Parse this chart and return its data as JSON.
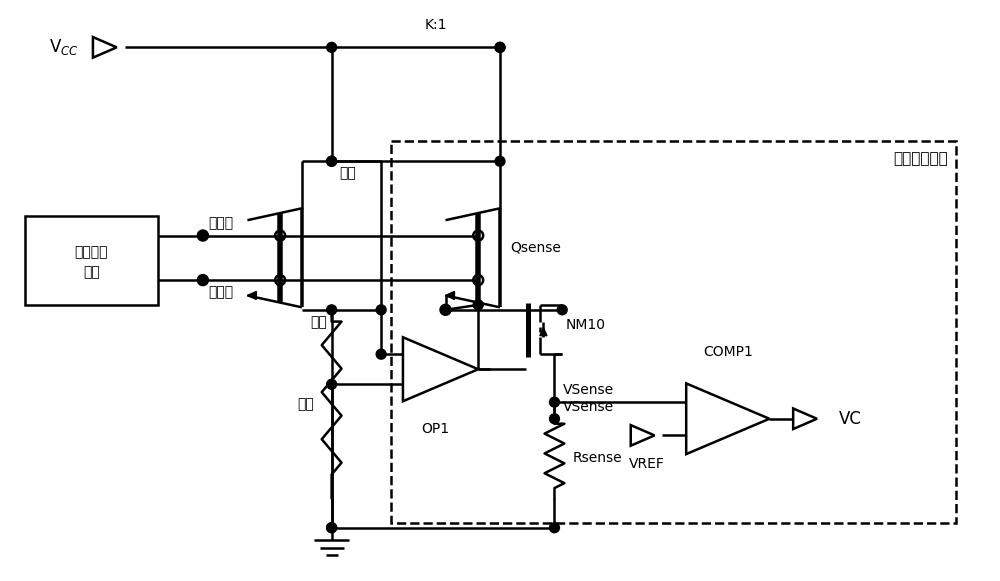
{
  "bg_color": "#ffffff",
  "line_color": "#000000",
  "figsize": [
    10.0,
    5.81
  ],
  "dpi": 100,
  "labels": {
    "vcc": "V$_{CC}$",
    "gate_driver_line1": "栅极驱动",
    "gate_driver_line2": "电路",
    "from_gate": "从栅极",
    "main_gate": "主栅极",
    "anode": "阳极",
    "cathode": "阴极",
    "load": "负载",
    "k1": "K:1",
    "current_sense": "电流检测电路",
    "qsense": "Qsense",
    "op1": "OP1",
    "nm10": "NM10",
    "rsense": "Rsense",
    "vsense": "VSense",
    "vref": "VREF",
    "comp1": "COMP1",
    "vc": "VC"
  }
}
